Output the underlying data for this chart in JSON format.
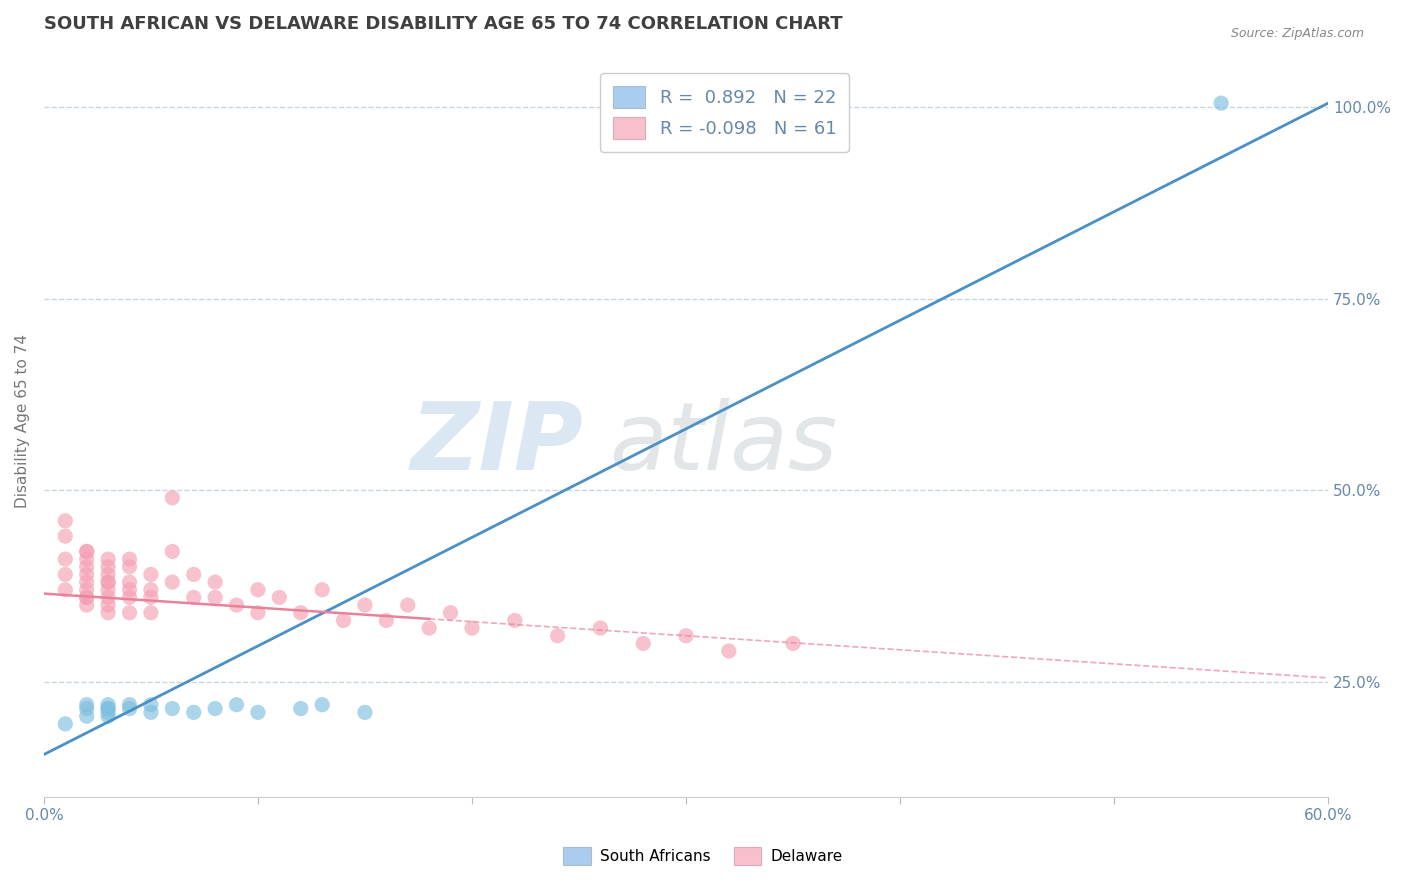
{
  "title": "SOUTH AFRICAN VS DELAWARE DISABILITY AGE 65 TO 74 CORRELATION CHART",
  "source_text": "Source: ZipAtlas.com",
  "xlabel": "",
  "ylabel": "Disability Age 65 to 74",
  "xlim": [
    0.0,
    0.6
  ],
  "ylim": [
    0.1,
    1.08
  ],
  "xtick_positions": [
    0.0,
    0.1,
    0.2,
    0.3,
    0.4,
    0.5,
    0.6
  ],
  "xtick_labels": [
    "0.0%",
    "",
    "",
    "",
    "",
    "",
    "60.0%"
  ],
  "ytick_labels_right": [
    "25.0%",
    "50.0%",
    "75.0%",
    "100.0%"
  ],
  "ytick_vals_right": [
    0.25,
    0.5,
    0.75,
    1.0
  ],
  "r_blue": 0.892,
  "n_blue": 22,
  "r_pink": -0.098,
  "n_pink": 61,
  "blue_color": "#7fbfdf",
  "pink_color": "#f4a0b5",
  "blue_line_color": "#4a90c4",
  "pink_line_color": "#e8829a",
  "legend_label_blue": "South Africans",
  "legend_label_pink": "Delaware",
  "watermark": "ZIPatlas",
  "background_color": "#ffffff",
  "grid_color": "#c8d4e8",
  "title_color": "#404040",
  "axis_text_color": "#6688aa",
  "blue_scatter_x": [
    0.01,
    0.02,
    0.02,
    0.02,
    0.03,
    0.03,
    0.03,
    0.03,
    0.03,
    0.04,
    0.04,
    0.05,
    0.05,
    0.06,
    0.07,
    0.08,
    0.09,
    0.1,
    0.12,
    0.13,
    0.15,
    0.55
  ],
  "blue_scatter_y": [
    0.195,
    0.205,
    0.22,
    0.215,
    0.21,
    0.215,
    0.22,
    0.205,
    0.215,
    0.22,
    0.215,
    0.21,
    0.22,
    0.215,
    0.21,
    0.215,
    0.22,
    0.21,
    0.215,
    0.22,
    0.21,
    1.005
  ],
  "pink_scatter_x": [
    0.01,
    0.01,
    0.01,
    0.01,
    0.01,
    0.02,
    0.02,
    0.02,
    0.02,
    0.02,
    0.02,
    0.02,
    0.02,
    0.02,
    0.02,
    0.03,
    0.03,
    0.03,
    0.03,
    0.03,
    0.03,
    0.03,
    0.03,
    0.03,
    0.04,
    0.04,
    0.04,
    0.04,
    0.04,
    0.04,
    0.05,
    0.05,
    0.05,
    0.05,
    0.06,
    0.06,
    0.06,
    0.07,
    0.07,
    0.08,
    0.08,
    0.09,
    0.1,
    0.1,
    0.11,
    0.12,
    0.13,
    0.14,
    0.15,
    0.16,
    0.17,
    0.18,
    0.19,
    0.2,
    0.22,
    0.24,
    0.26,
    0.28,
    0.3,
    0.32,
    0.35
  ],
  "pink_scatter_y": [
    0.37,
    0.41,
    0.44,
    0.46,
    0.39,
    0.36,
    0.39,
    0.42,
    0.38,
    0.36,
    0.4,
    0.37,
    0.42,
    0.35,
    0.41,
    0.35,
    0.38,
    0.4,
    0.36,
    0.39,
    0.37,
    0.41,
    0.34,
    0.38,
    0.37,
    0.4,
    0.36,
    0.38,
    0.34,
    0.41,
    0.36,
    0.39,
    0.34,
    0.37,
    0.38,
    0.42,
    0.49,
    0.36,
    0.39,
    0.36,
    0.38,
    0.35,
    0.37,
    0.34,
    0.36,
    0.34,
    0.37,
    0.33,
    0.35,
    0.33,
    0.35,
    0.32,
    0.34,
    0.32,
    0.33,
    0.31,
    0.32,
    0.3,
    0.31,
    0.29,
    0.3
  ],
  "blue_line_x0": 0.0,
  "blue_line_x1": 0.6,
  "blue_line_y0": 0.155,
  "blue_line_y1": 1.005,
  "pink_line_x0": 0.0,
  "pink_line_x1": 0.6,
  "pink_line_y0": 0.365,
  "pink_line_y1": 0.255
}
